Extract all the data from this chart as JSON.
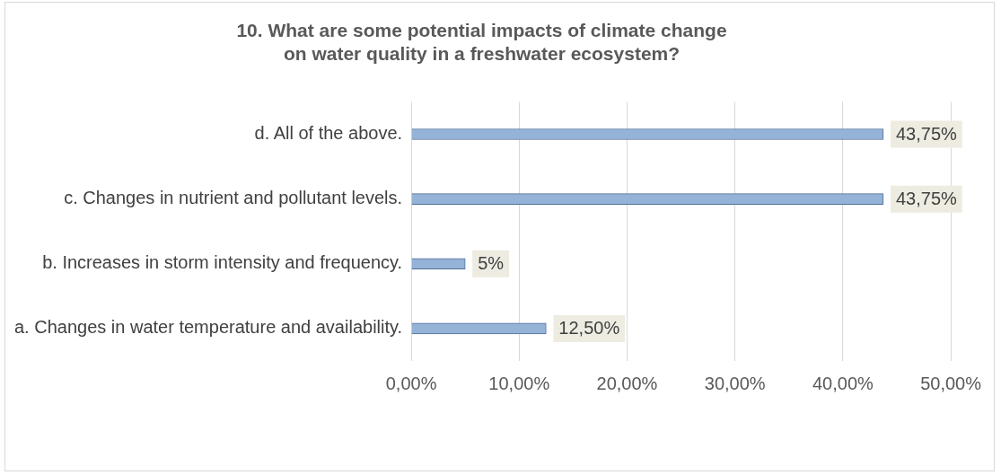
{
  "chart_data": {
    "type": "bar",
    "orientation": "horizontal",
    "title": "10. What are some potential impacts of climate change on water quality in a freshwater ecosystem?",
    "categories": [
      "d. All of the above.",
      "c. Changes in nutrient and pollutant levels.",
      "b. Increases in storm intensity and frequency.",
      "a. Changes in water temperature and availability."
    ],
    "values": [
      43.75,
      43.75,
      5,
      12.5
    ],
    "value_labels": [
      "43,75%",
      "43,75%",
      "5%",
      "12,50%"
    ],
    "color": "#95b3d7",
    "xlim": [
      0,
      50
    ],
    "xticks": [
      {
        "value": 0,
        "label": "0,00%"
      },
      {
        "value": 10,
        "label": "10,00%"
      },
      {
        "value": 20,
        "label": "20,00%"
      },
      {
        "value": 30,
        "label": "30,00%"
      },
      {
        "value": 40,
        "label": "40,00%"
      },
      {
        "value": 50,
        "label": "50,00%"
      }
    ],
    "grid": "x",
    "legend": false
  }
}
